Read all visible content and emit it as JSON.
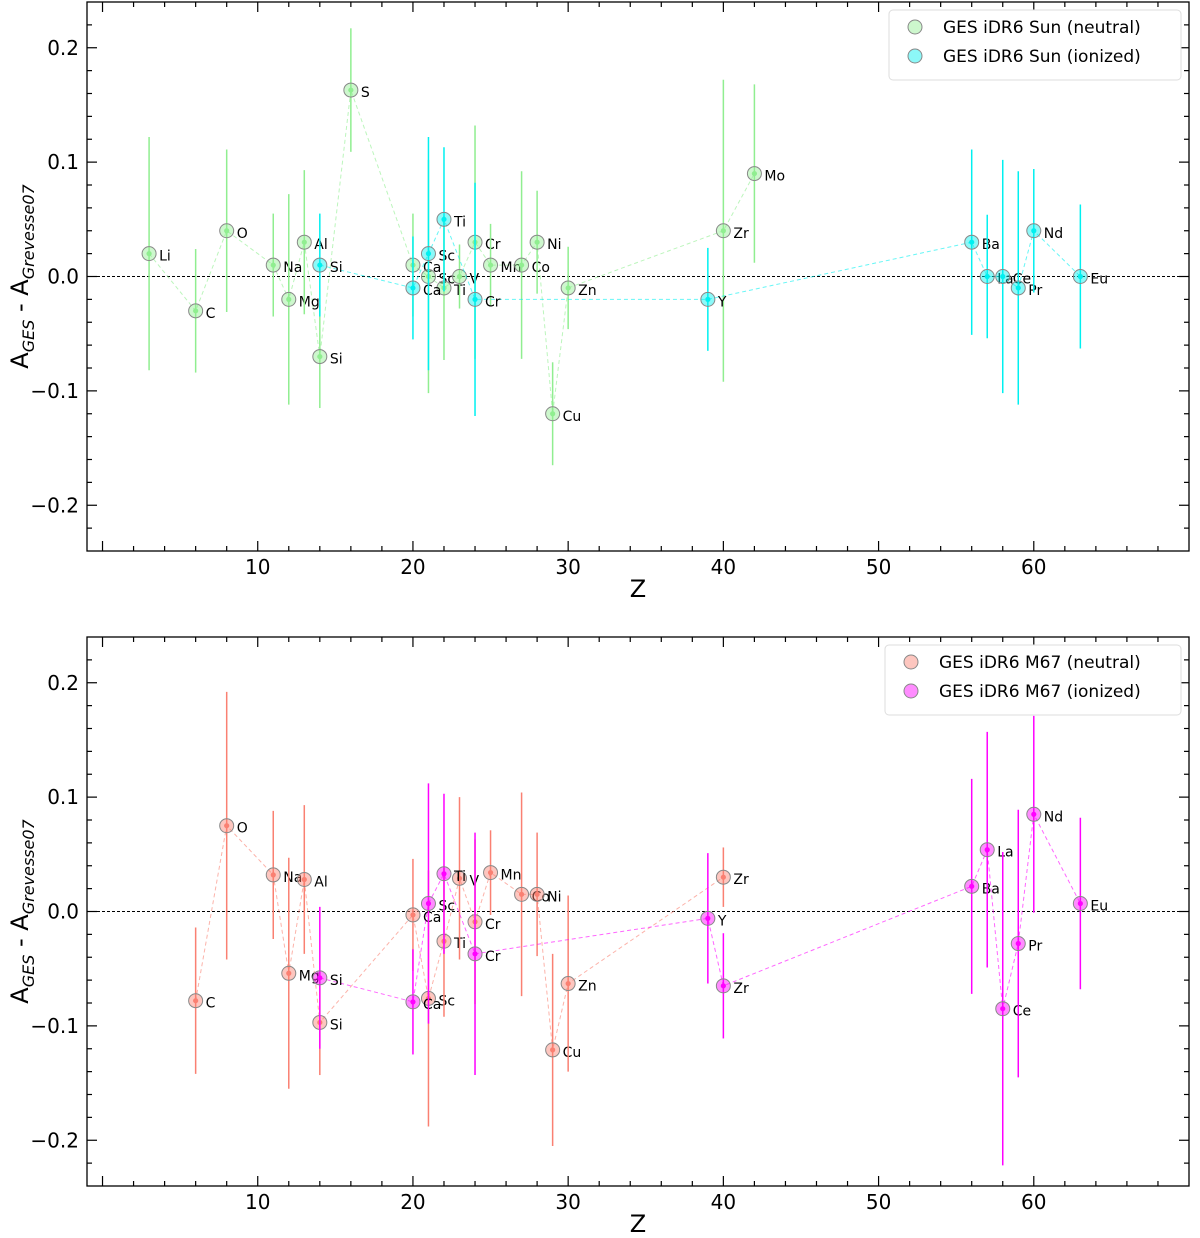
{
  "chart_data": [
    {
      "type": "scatter",
      "title": "",
      "xlabel": "Z",
      "ylabel": {
        "main": "A",
        "sub1": "GES",
        "mid": " - A",
        "sub2": "Grevesse07"
      },
      "xlim": [
        -1,
        70
      ],
      "ylim": [
        -0.24,
        0.24
      ],
      "xticks": [
        10,
        20,
        30,
        40,
        50,
        60
      ],
      "yticks": [
        -0.2,
        -0.1,
        0.0,
        0.1,
        0.2
      ],
      "ytick_labels": [
        "−0.2",
        "−0.1",
        "0.0",
        "0.1",
        "0.2"
      ],
      "zero_line": true,
      "legend_position": "top-right",
      "series": [
        {
          "name": "GES iDR6 Sun (neutral)",
          "color": "#90ee90",
          "points": [
            {
              "el": "Li",
              "z": 3,
              "y": 0.02,
              "err": 0.102
            },
            {
              "el": "C",
              "z": 6,
              "y": -0.03,
              "err": 0.054
            },
            {
              "el": "O",
              "z": 8,
              "y": 0.04,
              "err": 0.071
            },
            {
              "el": "Na",
              "z": 11,
              "y": 0.01,
              "err": 0.045
            },
            {
              "el": "Mg",
              "z": 12,
              "y": -0.02,
              "err": 0.092
            },
            {
              "el": "Al",
              "z": 13,
              "y": 0.03,
              "err": 0.063
            },
            {
              "el": "Si",
              "z": 14,
              "y": -0.07,
              "err": 0.045
            },
            {
              "el": "S",
              "z": 16,
              "y": 0.163,
              "err": 0.054
            },
            {
              "el": "Ca",
              "z": 20,
              "y": 0.01,
              "err": 0.045
            },
            {
              "el": "Sc",
              "z": 21,
              "y": 0.0,
              "err": 0.102
            },
            {
              "el": "Ti",
              "z": 22,
              "y": -0.01,
              "err": 0.063
            },
            {
              "el": "V",
              "z": 23,
              "y": 0.0,
              "err": 0.028
            },
            {
              "el": "Cr",
              "z": 24,
              "y": 0.03,
              "err": 0.102
            },
            {
              "el": "Mn",
              "z": 25,
              "y": 0.01,
              "err": 0.036
            },
            {
              "el": "Co",
              "z": 27,
              "y": 0.01,
              "err": 0.082
            },
            {
              "el": "Ni",
              "z": 28,
              "y": 0.03,
              "err": 0.045
            },
            {
              "el": "Cu",
              "z": 29,
              "y": -0.12,
              "err": 0.045
            },
            {
              "el": "Zn",
              "z": 30,
              "y": -0.01,
              "err": 0.036
            },
            {
              "el": "Zr",
              "z": 40,
              "y": 0.04,
              "err": 0.132
            },
            {
              "el": "Mo",
              "z": 42,
              "y": 0.09,
              "err": 0.078
            }
          ]
        },
        {
          "name": "GES iDR6 Sun (ionized)",
          "color": "#00f0f0",
          "points": [
            {
              "el": "Si",
              "z": 14,
              "y": 0.01,
              "err": 0.045
            },
            {
              "el": "Ca",
              "z": 20,
              "y": -0.01,
              "err": 0.045
            },
            {
              "el": "Sc",
              "z": 21,
              "y": 0.02,
              "err": 0.102
            },
            {
              "el": "Ti",
              "z": 22,
              "y": 0.05,
              "err": 0.063
            },
            {
              "el": "Cr",
              "z": 24,
              "y": -0.02,
              "err": 0.102
            },
            {
              "el": "Y",
              "z": 39,
              "y": -0.02,
              "err": 0.045
            },
            {
              "el": "Ba",
              "z": 56,
              "y": 0.03,
              "err": 0.081
            },
            {
              "el": "La",
              "z": 57,
              "y": 0.0,
              "err": 0.054
            },
            {
              "el": "Ce",
              "z": 58,
              "y": 0.0,
              "err": 0.102
            },
            {
              "el": "Pr",
              "z": 59,
              "y": -0.01,
              "err": 0.102
            },
            {
              "el": "Nd",
              "z": 60,
              "y": 0.04,
              "err": 0.054
            },
            {
              "el": "Eu",
              "z": 63,
              "y": 0.0,
              "err": 0.063
            }
          ]
        }
      ]
    },
    {
      "type": "scatter",
      "title": "",
      "xlabel": "Z",
      "ylabel": {
        "main": "A",
        "sub1": "GES",
        "mid": " - A",
        "sub2": "Grevesse07"
      },
      "xlim": [
        -1,
        70
      ],
      "ylim": [
        -0.24,
        0.24
      ],
      "xticks": [
        10,
        20,
        30,
        40,
        50,
        60
      ],
      "yticks": [
        -0.2,
        -0.1,
        0.0,
        0.1,
        0.2
      ],
      "ytick_labels": [
        "−0.2",
        "−0.1",
        "0.0",
        "0.1",
        "0.2"
      ],
      "zero_line": true,
      "legend_position": "top-right",
      "series": [
        {
          "name": "GES iDR6 M67 (neutral)",
          "color": "#fa8072",
          "points": [
            {
              "el": "C",
              "z": 6,
              "y": -0.078,
              "err": 0.064
            },
            {
              "el": "O",
              "z": 8,
              "y": 0.075,
              "err": 0.117
            },
            {
              "el": "Na",
              "z": 11,
              "y": 0.032,
              "err": 0.056
            },
            {
              "el": "Mg",
              "z": 12,
              "y": -0.054,
              "err": 0.101
            },
            {
              "el": "Al",
              "z": 13,
              "y": 0.028,
              "err": 0.065
            },
            {
              "el": "Si",
              "z": 14,
              "y": -0.097,
              "err": 0.046
            },
            {
              "el": "Ca",
              "z": 20,
              "y": -0.003,
              "err": 0.049
            },
            {
              "el": "Sc",
              "z": 21,
              "y": -0.076,
              "err": 0.112
            },
            {
              "el": "Ti",
              "z": 22,
              "y": -0.026,
              "err": 0.066
            },
            {
              "el": "V",
              "z": 23,
              "y": 0.029,
              "err": 0.071
            },
            {
              "el": "Cr",
              "z": 24,
              "y": -0.009,
              "err": 0.072
            },
            {
              "el": "Mn",
              "z": 25,
              "y": 0.034,
              "err": 0.037
            },
            {
              "el": "Co",
              "z": 27,
              "y": 0.015,
              "err": 0.089
            },
            {
              "el": "Ni",
              "z": 28,
              "y": 0.015,
              "err": 0.054
            },
            {
              "el": "Cu",
              "z": 29,
              "y": -0.121,
              "err": 0.084
            },
            {
              "el": "Zn",
              "z": 30,
              "y": -0.063,
              "err": 0.077
            },
            {
              "el": "Zr",
              "z": 40,
              "y": 0.03,
              "err": 0.026
            }
          ]
        },
        {
          "name": "GES iDR6 M67 (ionized)",
          "color": "#ff00ff",
          "points": [
            {
              "el": "Si",
              "z": 14,
              "y": -0.058,
              "err": 0.062
            },
            {
              "el": "Ca",
              "z": 20,
              "y": -0.079,
              "err": 0.046
            },
            {
              "el": "Sc",
              "z": 21,
              "y": 0.007,
              "err": 0.105
            },
            {
              "el": "Ti",
              "z": 22,
              "y": 0.033,
              "err": 0.07
            },
            {
              "el": "Cr",
              "z": 24,
              "y": -0.037,
              "err": 0.106
            },
            {
              "el": "Y",
              "z": 39,
              "y": -0.006,
              "err": 0.057
            },
            {
              "el": "Zr",
              "z": 40,
              "y": -0.065,
              "err": 0.046
            },
            {
              "el": "Ba",
              "z": 56,
              "y": 0.022,
              "err": 0.094
            },
            {
              "el": "La",
              "z": 57,
              "y": 0.054,
              "err": 0.103
            },
            {
              "el": "Ce",
              "z": 58,
              "y": -0.085,
              "err": 0.137
            },
            {
              "el": "Pr",
              "z": 59,
              "y": -0.028,
              "err": 0.117
            },
            {
              "el": "Nd",
              "z": 60,
              "y": 0.085,
              "err": 0.086
            },
            {
              "el": "Eu",
              "z": 63,
              "y": 0.007,
              "err": 0.075
            }
          ]
        }
      ]
    }
  ]
}
